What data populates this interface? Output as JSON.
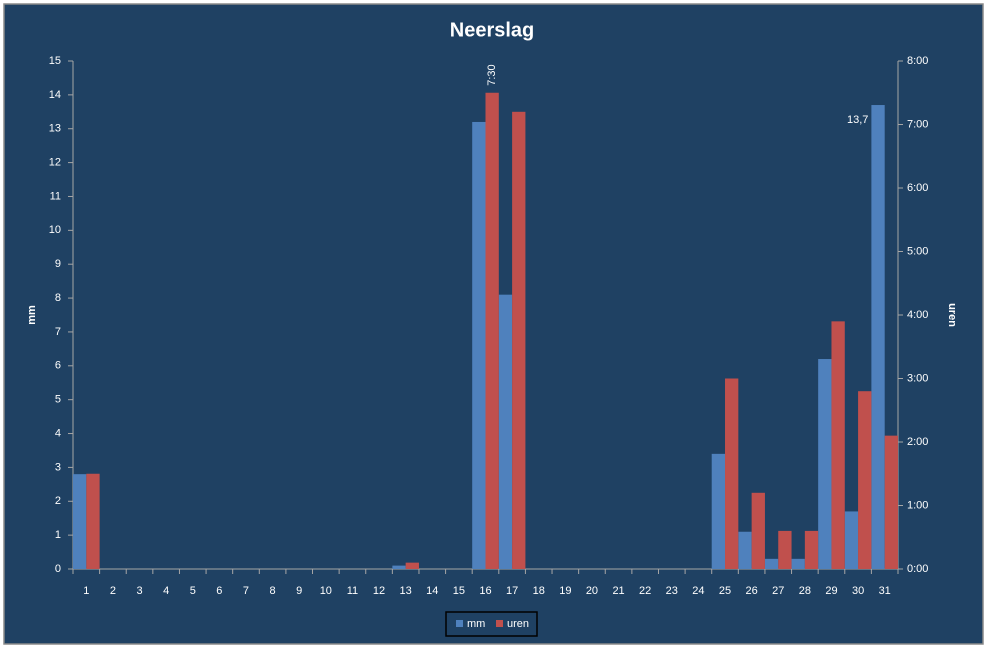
{
  "chart_data": {
    "type": "bar",
    "title": "Neerslag",
    "categories": [
      "1",
      "2",
      "3",
      "4",
      "5",
      "6",
      "7",
      "8",
      "9",
      "10",
      "11",
      "12",
      "13",
      "14",
      "15",
      "16",
      "17",
      "18",
      "19",
      "20",
      "21",
      "22",
      "23",
      "24",
      "25",
      "26",
      "27",
      "28",
      "29",
      "30",
      "31"
    ],
    "series": [
      {
        "name": "mm",
        "color": "#4f81bd",
        "values": [
          2.8,
          0,
          0,
          0,
          0,
          0,
          0,
          0,
          0,
          0,
          0,
          0,
          0.1,
          0,
          0,
          13.2,
          8.1,
          0,
          0,
          0,
          0,
          0,
          0,
          0,
          3.4,
          1.1,
          0.3,
          0.3,
          6.2,
          1.7,
          13.7
        ],
        "value_labels": [
          null,
          null,
          null,
          null,
          null,
          null,
          null,
          null,
          null,
          null,
          null,
          null,
          null,
          null,
          null,
          null,
          null,
          null,
          null,
          null,
          null,
          null,
          null,
          null,
          null,
          null,
          null,
          null,
          null,
          null,
          "13,7"
        ]
      },
      {
        "name": "uren",
        "color": "#c0504d",
        "axis": "y2",
        "values": [
          1.5,
          0,
          0,
          0,
          0,
          0,
          0,
          0,
          0,
          0,
          0,
          0,
          0.1,
          0,
          0,
          7.5,
          7.2,
          0,
          0,
          0,
          0,
          0,
          0,
          0,
          3.0,
          1.2,
          0.6,
          0.6,
          3.9,
          2.8,
          2.1
        ],
        "value_labels": [
          null,
          null,
          null,
          null,
          null,
          null,
          null,
          null,
          null,
          null,
          null,
          null,
          null,
          null,
          null,
          "7:30",
          null,
          null,
          null,
          null,
          null,
          null,
          null,
          null,
          null,
          null,
          null,
          null,
          null,
          null,
          null
        ]
      }
    ],
    "ylabel": "mm",
    "y2label": "uren",
    "ylim": [
      0,
      15
    ],
    "yticks": [
      0,
      1,
      2,
      3,
      4,
      5,
      6,
      7,
      8,
      9,
      10,
      11,
      12,
      13,
      14,
      15
    ],
    "y2lim": [
      0,
      8
    ],
    "y2ticks": [
      {
        "value": 0,
        "label": "0:00"
      },
      {
        "value": 1,
        "label": "1:00"
      },
      {
        "value": 2,
        "label": "2:00"
      },
      {
        "value": 3,
        "label": "3:00"
      },
      {
        "value": 4,
        "label": "4:00"
      },
      {
        "value": 5,
        "label": "5:00"
      },
      {
        "value": 6,
        "label": "6:00"
      },
      {
        "value": 7,
        "label": "7:00"
      },
      {
        "value": 8,
        "label": "8:00"
      }
    ],
    "legend": "bottom"
  }
}
